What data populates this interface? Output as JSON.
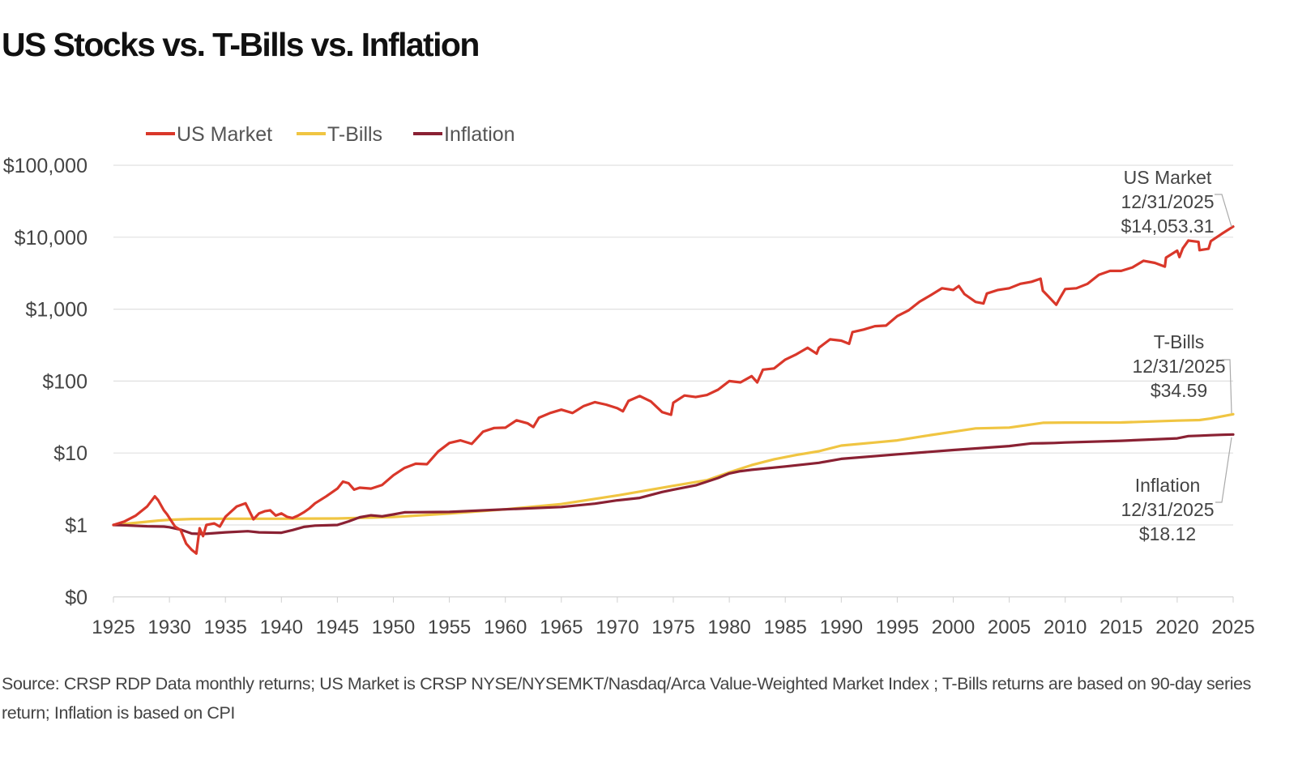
{
  "chart_data": {
    "type": "line",
    "title": "US Stocks vs. T-Bills vs. Inflation",
    "source": "Source: CRSP RDP Data monthly returns; US Market is CRSP NYSE/NYSEMKT/Nasdaq/Arca Value-Weighted Market Index ; T-Bills returns are based on 90-day series return; Inflation is based on CPI",
    "y_scale": "log",
    "y_ticks": [
      "$100,000",
      "$10,000",
      "$1,000",
      "$100",
      "$10",
      "$1",
      "$0"
    ],
    "x_ticks": [
      "1925",
      "1930",
      "1935",
      "1940",
      "1945",
      "1950",
      "1955",
      "1960",
      "1965",
      "1970",
      "1975",
      "1980",
      "1985",
      "1990",
      "1995",
      "2000",
      "2005",
      "2010",
      "2015",
      "2020",
      "2025"
    ],
    "xlim": [
      1925,
      2025
    ],
    "legend_position": "top-left",
    "series": [
      {
        "name": "US Market",
        "color": "#d9372a",
        "x": [
          1925.0,
          1926.0,
          1927.0,
          1928.0,
          1928.7,
          1929.0,
          1929.5,
          1929.8,
          1930.0,
          1930.5,
          1931.0,
          1931.5,
          1932.0,
          1932.4,
          1932.7,
          1933.0,
          1933.3,
          1934.0,
          1934.5,
          1935.0,
          1936.0,
          1936.8,
          1937.2,
          1937.5,
          1938.0,
          1938.5,
          1939.0,
          1939.5,
          1940.0,
          1940.5,
          1941.0,
          1941.5,
          1942.0,
          1942.5,
          1943.0,
          1944.0,
          1945.0,
          1945.5,
          1946.0,
          1946.5,
          1947.0,
          1948.0,
          1949.0,
          1950.0,
          1951.0,
          1952.0,
          1953.0,
          1954.0,
          1955.0,
          1956.0,
          1957.0,
          1958.0,
          1959.0,
          1960.0,
          1961.0,
          1962.0,
          1962.5,
          1963.0,
          1964.0,
          1965.0,
          1966.0,
          1967.0,
          1968.0,
          1969.0,
          1970.0,
          1970.5,
          1971.0,
          1972.0,
          1973.0,
          1974.0,
          1974.8,
          1975.0,
          1976.0,
          1977.0,
          1978.0,
          1979.0,
          1980.0,
          1981.0,
          1982.0,
          1982.5,
          1983.0,
          1984.0,
          1985.0,
          1986.0,
          1987.0,
          1987.8,
          1988.0,
          1989.0,
          1990.0,
          1990.7,
          1991.0,
          1992.0,
          1993.0,
          1994.0,
          1995.0,
          1996.0,
          1997.0,
          1998.0,
          1999.0,
          2000.0,
          2000.5,
          2001.0,
          2002.0,
          2002.7,
          2003.0,
          2004.0,
          2005.0,
          2006.0,
          2007.0,
          2007.8,
          2008.0,
          2008.5,
          2009.2,
          2009.5,
          2010.0,
          2011.0,
          2012.0,
          2013.0,
          2014.0,
          2015.0,
          2016.0,
          2017.0,
          2018.0,
          2018.9,
          2019.0,
          2020.0,
          2020.2,
          2020.5,
          2021.0,
          2021.9,
          2022.0,
          2022.8,
          2023.0,
          2024.0,
          2025.0
        ],
        "y": [
          1.0,
          1.12,
          1.35,
          1.8,
          2.5,
          2.2,
          1.6,
          1.4,
          1.25,
          0.95,
          0.85,
          0.55,
          0.45,
          0.4,
          0.9,
          0.7,
          1.0,
          1.05,
          0.95,
          1.3,
          1.8,
          2.0,
          1.5,
          1.2,
          1.45,
          1.55,
          1.6,
          1.35,
          1.45,
          1.3,
          1.25,
          1.35,
          1.5,
          1.7,
          2.0,
          2.5,
          3.2,
          4.0,
          3.8,
          3.1,
          3.3,
          3.2,
          3.6,
          4.9,
          6.2,
          7.1,
          7.0,
          10.5,
          13.8,
          15.0,
          13.4,
          19.8,
          22.3,
          22.5,
          28.5,
          25.8,
          23.0,
          31.0,
          36.0,
          40.0,
          36.0,
          45.0,
          51.0,
          47.0,
          42.0,
          38.0,
          53.0,
          62.0,
          52.0,
          37.0,
          34.0,
          50.0,
          63.0,
          60.0,
          64.0,
          76.0,
          100.0,
          96.0,
          117.0,
          96.0,
          144.0,
          150.0,
          199.0,
          236.0,
          290.0,
          240.0,
          290.0,
          380.0,
          365.0,
          330.0,
          480.0,
          520.0,
          580.0,
          590.0,
          800.0,
          960.0,
          1270.0,
          1570.0,
          1950.0,
          1850.0,
          2100.0,
          1620.0,
          1260.0,
          1200.0,
          1650.0,
          1850.0,
          1950.0,
          2250.0,
          2400.0,
          2650.0,
          1800.0,
          1500.0,
          1150.0,
          1400.0,
          1900.0,
          1950.0,
          2250.0,
          3000.0,
          3400.0,
          3400.0,
          3800.0,
          4700.0,
          4400.0,
          3900.0,
          5200.0,
          6500.0,
          5300.0,
          7000.0,
          9000.0,
          8600.0,
          6600.0,
          6900.0,
          8800.0,
          11200.0,
          14053.31
        ]
      },
      {
        "name": "T-Bills",
        "color": "#f0c542",
        "x": [
          1925.0,
          1927.0,
          1929.0,
          1930.0,
          1932.0,
          1935.0,
          1940.0,
          1945.0,
          1950.0,
          1955.0,
          1960.0,
          1965.0,
          1970.0,
          1973.0,
          1975.0,
          1978.0,
          1980.0,
          1982.0,
          1984.0,
          1986.0,
          1988.0,
          1990.0,
          1993.0,
          1995.0,
          1998.0,
          2000.0,
          2002.0,
          2005.0,
          2007.0,
          2008.0,
          2010.0,
          2015.0,
          2020.0,
          2022.0,
          2023.0,
          2024.0,
          2025.0
        ],
        "y": [
          1.0,
          1.07,
          1.15,
          1.18,
          1.21,
          1.22,
          1.22,
          1.23,
          1.29,
          1.44,
          1.65,
          1.95,
          2.57,
          3.1,
          3.5,
          4.2,
          5.4,
          6.8,
          8.2,
          9.4,
          10.6,
          12.7,
          14.0,
          15.0,
          17.8,
          19.8,
          22.0,
          22.6,
          25.0,
          26.3,
          26.5,
          26.6,
          28.2,
          28.7,
          30.2,
          32.4,
          34.59
        ]
      },
      {
        "name": "Inflation",
        "color": "#8a2133",
        "x": [
          1925.0,
          1926.0,
          1928.0,
          1929.5,
          1930.0,
          1931.0,
          1932.0,
          1933.0,
          1935.0,
          1937.0,
          1938.0,
          1940.0,
          1941.0,
          1942.0,
          1943.0,
          1945.0,
          1946.0,
          1947.0,
          1948.0,
          1949.0,
          1950.0,
          1951.0,
          1955.0,
          1960.0,
          1965.0,
          1968.0,
          1970.0,
          1972.0,
          1974.0,
          1975.0,
          1977.0,
          1979.0,
          1980.0,
          1981.0,
          1982.0,
          1985.0,
          1988.0,
          1990.0,
          1995.0,
          2000.0,
          2005.0,
          2007.0,
          2008.0,
          2009.0,
          2010.0,
          2015.0,
          2020.0,
          2021.0,
          2022.0,
          2023.0,
          2024.0,
          2025.0
        ],
        "y": [
          1.0,
          0.99,
          0.96,
          0.95,
          0.93,
          0.86,
          0.76,
          0.75,
          0.79,
          0.82,
          0.79,
          0.78,
          0.85,
          0.94,
          0.98,
          1.0,
          1.12,
          1.28,
          1.36,
          1.32,
          1.4,
          1.5,
          1.52,
          1.65,
          1.78,
          1.98,
          2.2,
          2.38,
          2.87,
          3.1,
          3.55,
          4.5,
          5.2,
          5.6,
          5.85,
          6.5,
          7.3,
          8.3,
          9.6,
          11.0,
          12.5,
          13.6,
          13.7,
          13.8,
          14.0,
          14.8,
          16.0,
          17.2,
          17.4,
          17.7,
          17.9,
          18.12
        ]
      }
    ],
    "annotations": [
      {
        "series": "US Market",
        "lines": [
          "US Market",
          "12/31/2025",
          "$14,053.31"
        ]
      },
      {
        "series": "T-Bills",
        "lines": [
          "T-Bills",
          "12/31/2025",
          "$34.59"
        ]
      },
      {
        "series": "Inflation",
        "lines": [
          "Inflation",
          "12/31/2025",
          "$18.12"
        ]
      }
    ]
  }
}
